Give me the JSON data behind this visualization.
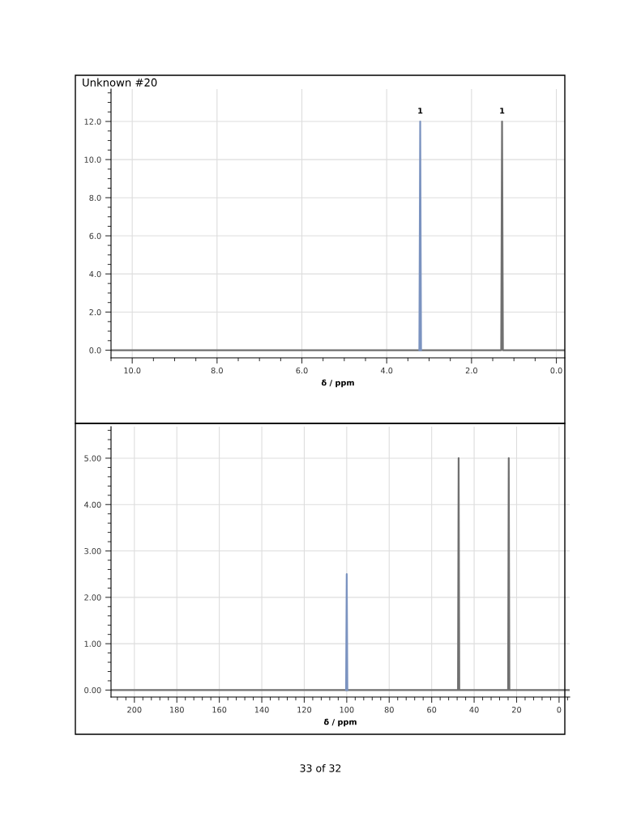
{
  "chart_data": [
    {
      "type": "line",
      "title": "Unknown #20",
      "xlabel": "δ / ppm",
      "grid": true,
      "marker": "none",
      "xlim": [
        10.5,
        -0.2
      ],
      "xticks": [
        {
          "value": 10,
          "label": "10.0"
        },
        {
          "value": 8,
          "label": "8.0"
        },
        {
          "value": 6,
          "label": "6.0"
        },
        {
          "value": 4,
          "label": "4.0"
        },
        {
          "value": 2,
          "label": "2.0"
        },
        {
          "value": 0,
          "label": "0.0"
        }
      ],
      "ylim": [
        -0.4,
        13.7
      ],
      "yticks": [
        {
          "value": 0,
          "label": "0.0"
        },
        {
          "value": 2,
          "label": "2.0"
        },
        {
          "value": 4,
          "label": "4.0"
        },
        {
          "value": 6,
          "label": "6.0"
        },
        {
          "value": 8,
          "label": "8.0"
        },
        {
          "value": 10,
          "label": "10.0"
        },
        {
          "value": 12,
          "label": "12.0"
        }
      ],
      "series": [
        {
          "color": "#707070",
          "x": [
            10.5,
            1.3,
            1.28,
            1.26,
            -0.2
          ],
          "values": [
            0,
            0,
            12,
            0,
            0
          ]
        },
        {
          "color": "#7b93c0",
          "x": [
            3.23,
            3.21,
            3.19
          ],
          "values": [
            0,
            12,
            0
          ]
        }
      ],
      "annotations": [
        {
          "text": "1",
          "x": 3.21,
          "y": 12
        },
        {
          "text": "1",
          "x": 1.28,
          "y": 12
        }
      ]
    },
    {
      "type": "line",
      "xlabel": "δ / ppm",
      "grid": true,
      "marker": "none",
      "xlim": [
        211,
        -5
      ],
      "xticks": [
        200,
        180,
        160,
        140,
        120,
        100,
        80,
        60,
        40,
        20,
        0
      ],
      "ylim": [
        -0.15,
        5.68
      ],
      "yticks": [
        {
          "value": 0,
          "label": "0.00"
        },
        {
          "value": 1,
          "label": "1.00"
        },
        {
          "value": 2,
          "label": "2.00"
        },
        {
          "value": 3,
          "label": "3.00"
        },
        {
          "value": 4,
          "label": "4.00"
        },
        {
          "value": 5,
          "label": "5.00"
        }
      ],
      "series": [
        {
          "color": "#707070",
          "x": [
            211,
            47.6,
            47.3,
            47.0,
            24.0,
            23.7,
            23.4,
            -5
          ],
          "values": [
            0,
            0,
            5,
            0,
            0,
            5,
            0,
            0
          ]
        },
        {
          "color": "#7b93c0",
          "x": [
            100.3,
            100.0,
            99.7
          ],
          "values": [
            0,
            2.5,
            0
          ]
        }
      ],
      "annotations": [
        "33 of 32"
      ]
    }
  ]
}
